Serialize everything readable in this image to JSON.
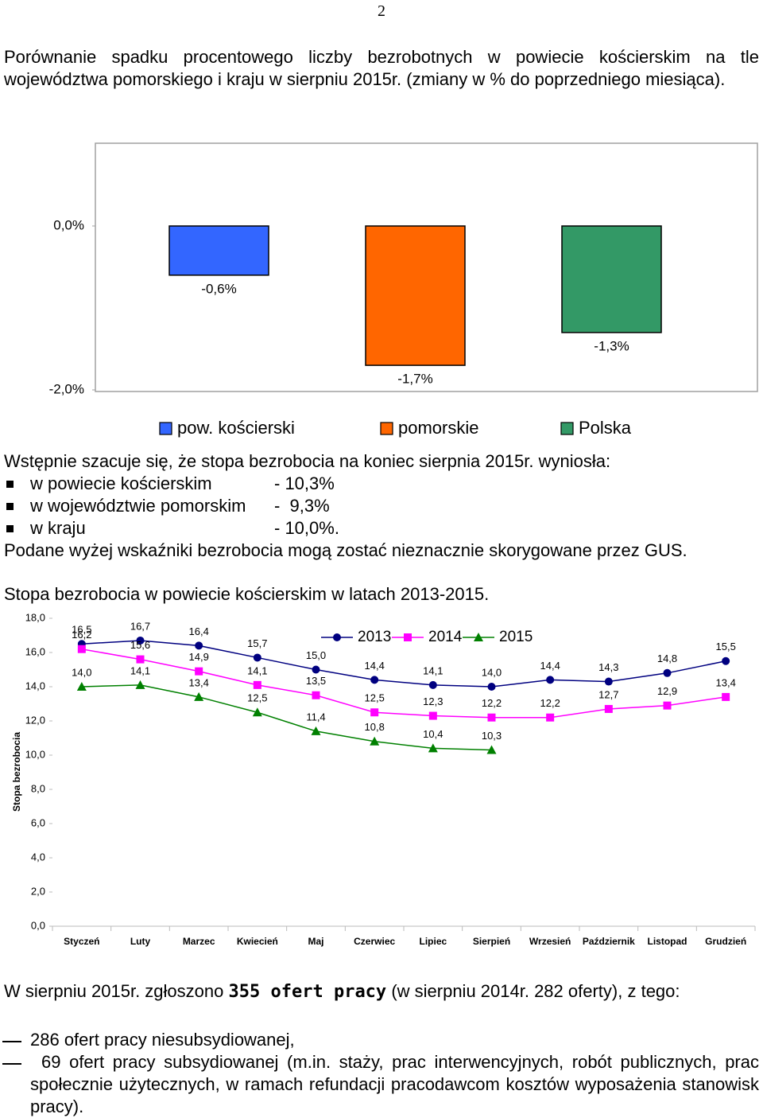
{
  "page_number": "2",
  "intro": "Porównanie spadku procentowego liczby bezrobotnych w powiecie kościerskim na tle województwa pomorskiego i kraju w sierpniu 2015r. (zmiany w % do poprzedniego miesiąca).",
  "chart_data": [
    {
      "type": "bar",
      "categories": [
        "pow. kościerski",
        "pomorskie",
        "Polska"
      ],
      "values": [
        -0.6,
        -1.7,
        -1.3
      ],
      "value_labels": [
        "-0,6%",
        "-1,7%",
        "-1,3%"
      ],
      "colors": [
        "#3366ff",
        "#ff6600",
        "#339966"
      ],
      "ylim": [
        -2,
        1
      ],
      "yticks": [
        {
          "value": 0,
          "label": "0,0%"
        },
        {
          "value": -2,
          "label": "-2,0%"
        }
      ],
      "legend": "bottom"
    },
    {
      "type": "line",
      "title": "Stopa bezrobocia w powiecie kościerskim w latach 2013-2015.",
      "y_label": "Stopa bezrobocia",
      "categories": [
        "Styczeń",
        "Luty",
        "Marzec",
        "Kwiecień",
        "Maj",
        "Czerwiec",
        "Lipiec",
        "Sierpień",
        "Wrzesień",
        "Październik",
        "Listopad",
        "Grudzień"
      ],
      "series": [
        {
          "name": "2013",
          "color": "#000080",
          "marker": "circle",
          "values": [
            16.5,
            16.7,
            16.4,
            15.7,
            15.0,
            14.4,
            14.1,
            14.0,
            14.4,
            14.3,
            14.8,
            15.5
          ],
          "value_labels": [
            "16,5",
            "16,7",
            "16,4",
            "15,7",
            "15,0",
            "14,4",
            "14,1",
            "14,0",
            "14,4",
            "14,3",
            "14,8",
            "15,5"
          ]
        },
        {
          "name": "2014",
          "color": "#ff00ff",
          "marker": "square",
          "values": [
            16.2,
            15.6,
            14.9,
            14.1,
            13.5,
            12.5,
            12.3,
            12.2,
            12.2,
            12.7,
            12.9,
            13.4
          ],
          "value_labels": [
            "16,2",
            "15,6",
            "14,9",
            "14,1",
            "13,5",
            "12,5",
            "12,3",
            "12,2",
            "12,2",
            "12,7",
            "12,9",
            "13,4"
          ]
        },
        {
          "name": "2015",
          "color": "#008000",
          "marker": "triangle",
          "values": [
            14.0,
            14.1,
            13.4,
            12.5,
            11.4,
            10.8,
            10.4,
            10.3,
            null,
            null,
            null,
            null
          ],
          "value_labels": [
            "14,0",
            "14,1",
            "13,4",
            "12,5",
            "11,4",
            "10,8",
            "10,4",
            "10,3",
            null,
            null,
            null,
            null
          ]
        }
      ],
      "ylim": [
        0,
        18
      ],
      "yticks": [
        {
          "value": 0,
          "label": "0,0"
        },
        {
          "value": 2,
          "label": "2,0"
        },
        {
          "value": 4,
          "label": "4,0"
        },
        {
          "value": 6,
          "label": "6,0"
        },
        {
          "value": 8,
          "label": "8,0"
        },
        {
          "value": 10,
          "label": "10,0"
        },
        {
          "value": 12,
          "label": "12,0"
        },
        {
          "value": 14,
          "label": "14,0"
        },
        {
          "value": 16,
          "label": "16,0"
        },
        {
          "value": 18,
          "label": "18,0"
        }
      ],
      "grid": false,
      "legend": "top"
    }
  ],
  "summary": {
    "lead": "Wstępnie szacuje się, że stopa bezrobocia na koniec sierpnia 2015r. wyniosła:",
    "items": [
      {
        "label": "w powiecie kościerskim",
        "value": "- 10,3%"
      },
      {
        "label": "w województwie pomorskim",
        "value": "-  9,3%"
      },
      {
        "label": "w kraju",
        "value": "- 10,0%."
      }
    ],
    "note": "Podane wyżej wskaźniki bezrobocia mogą zostać nieznacznie skorygowane przez GUS."
  },
  "offers": {
    "before": "W sierpniu 2015r. zgłoszono",
    "highlight": "355 ofert pracy",
    "after": "(w sierpniu 2014r. 282 oferty), z tego:",
    "items": [
      "286 ofert pracy niesubsydiowanej,",
      "69 ofert pracy subsydiowanej (m.in. staży, prac interwencyjnych, robót publicznych, prac społecznie użytecznych, w ramach refundacji pracodawcom kosztów wyposażenia stanowisk pracy)."
    ]
  }
}
